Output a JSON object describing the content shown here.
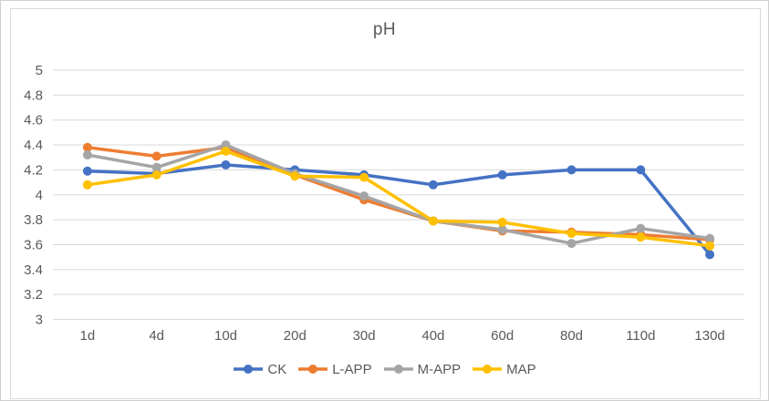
{
  "chart_data": {
    "type": "line",
    "title": "pH",
    "categories": [
      "1d",
      "4d",
      "10d",
      "20d",
      "30d",
      "40d",
      "60d",
      "80d",
      "110d",
      "130d"
    ],
    "series": [
      {
        "name": "CK",
        "color": "#4472C4",
        "values": [
          4.19,
          4.17,
          4.24,
          4.2,
          4.16,
          4.08,
          4.16,
          4.2,
          4.2,
          3.52
        ]
      },
      {
        "name": "L-APP",
        "color": "#ED7D31",
        "values": [
          4.38,
          4.31,
          4.38,
          4.16,
          3.96,
          3.79,
          3.71,
          3.7,
          3.68,
          3.64
        ]
      },
      {
        "name": "M-APP",
        "color": "#A5A5A5",
        "values": [
          4.32,
          4.22,
          4.4,
          4.17,
          3.99,
          3.79,
          3.72,
          3.61,
          3.73,
          3.65
        ]
      },
      {
        "name": "MAP",
        "color": "#FFC000",
        "values": [
          4.08,
          4.16,
          4.35,
          4.15,
          4.14,
          3.79,
          3.78,
          3.69,
          3.66,
          3.59
        ]
      }
    ],
    "ylim": [
      3,
      5
    ],
    "ytick_labels": [
      "5",
      "4.8",
      "4.6",
      "4.4",
      "4.2",
      "4",
      "3.8",
      "3.6",
      "3.4",
      "3.2",
      "3"
    ],
    "grid": true,
    "legend_position": "bottom",
    "marker": "circle",
    "colors": {
      "axis_text": "#595959",
      "gridline": "#d9d9d9",
      "chart_border": "#d9d9d9",
      "background": "#ffffff"
    }
  }
}
